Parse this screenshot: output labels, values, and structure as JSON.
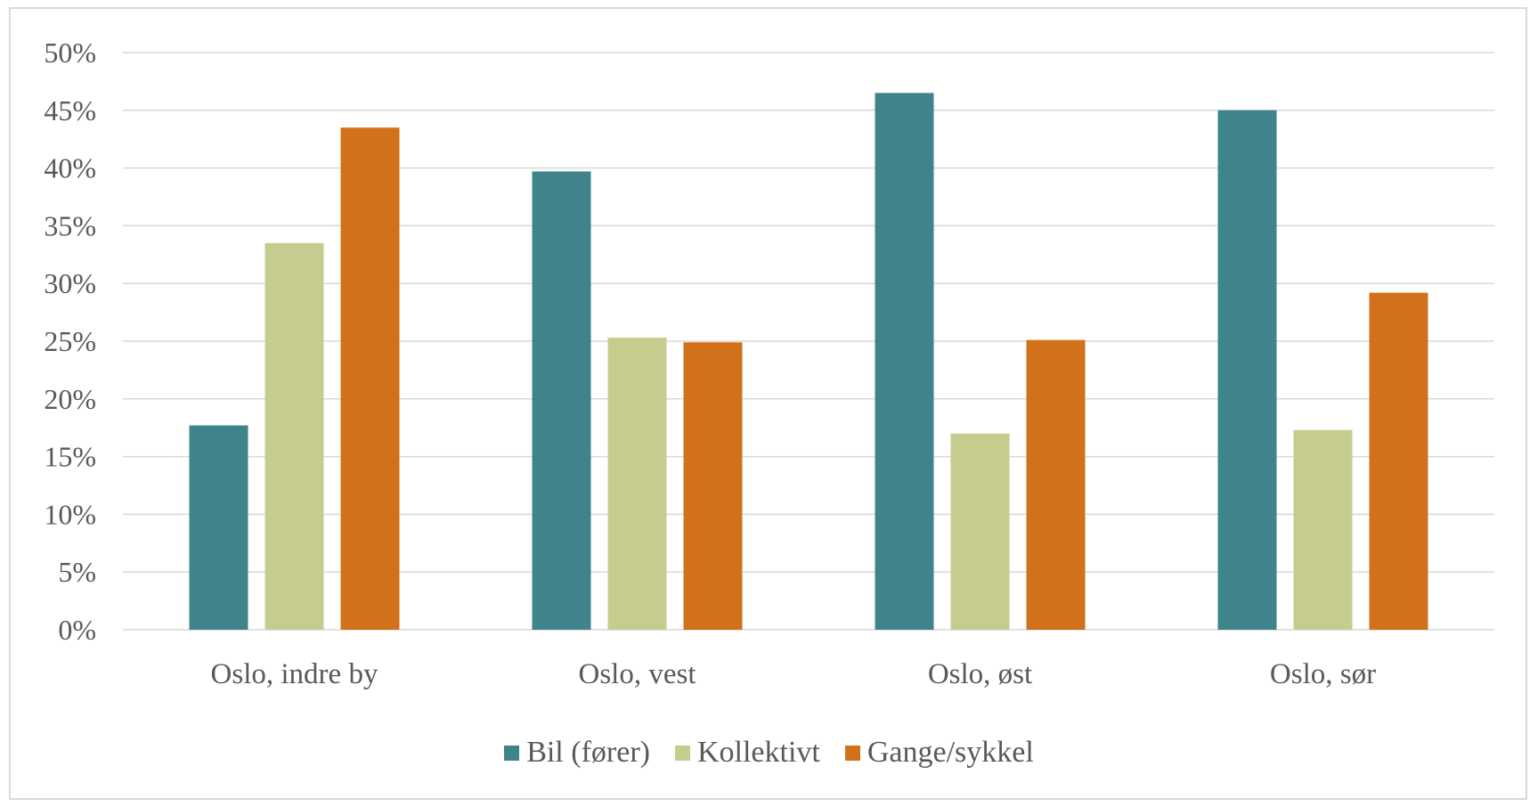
{
  "chart_data": {
    "type": "bar",
    "categories": [
      "Oslo, indre by",
      "Oslo, vest",
      "Oslo, øst",
      "Oslo, sør"
    ],
    "series": [
      {
        "name": "Bil (fører)",
        "color": "#3e848a",
        "values": [
          17.7,
          39.7,
          46.5,
          45.0
        ]
      },
      {
        "name": "Kollektivt",
        "color": "#c6cc8e",
        "values": [
          33.5,
          25.3,
          17.0,
          17.3
        ]
      },
      {
        "name": "Gange/sykkel",
        "color": "#d2711c",
        "values": [
          43.5,
          24.9,
          25.1,
          29.2
        ]
      }
    ],
    "ylim": [
      0,
      50
    ],
    "yticks": [
      "0%",
      "5%",
      "10%",
      "15%",
      "20%",
      "25%",
      "30%",
      "35%",
      "40%",
      "45%",
      "50%"
    ],
    "grid": true,
    "legend": "bottom",
    "gridline_color": "#d9d9d9"
  }
}
